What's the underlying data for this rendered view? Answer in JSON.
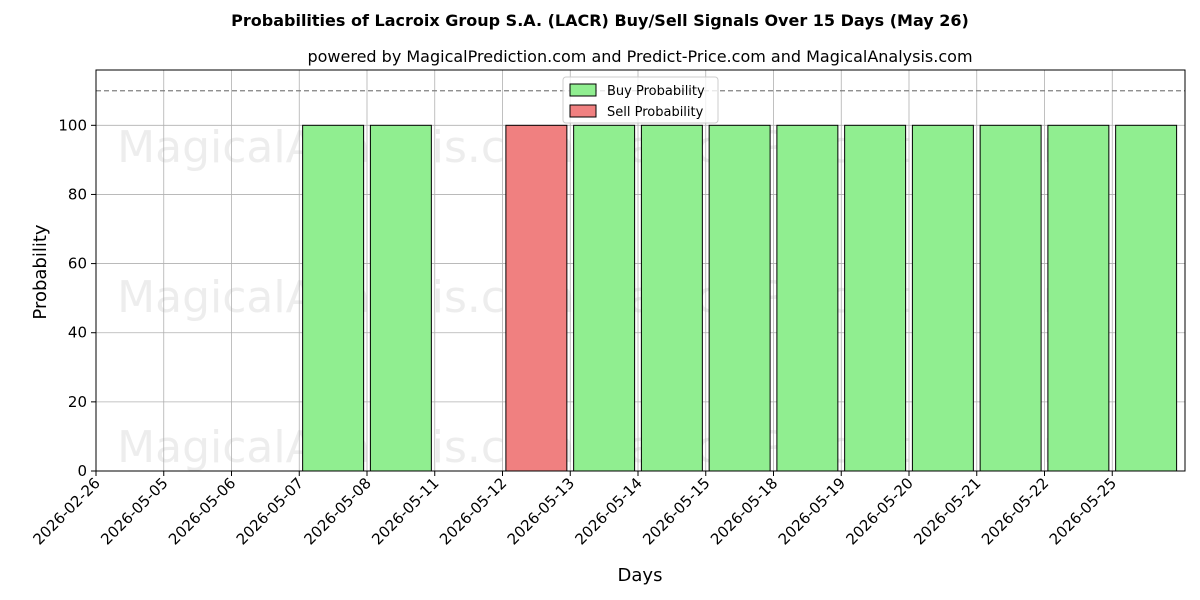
{
  "chart_data": {
    "type": "bar",
    "title": "Probabilities of Lacroix Group S.A. (LACR) Buy/Sell Signals Over 15 Days (May 26)",
    "subtitle": "powered by MagicalPrediction.com and Predict-Price.com and MagicalAnalysis.com",
    "xlabel": "Days",
    "ylabel": "Probability",
    "ylim": [
      0,
      116
    ],
    "yticks": [
      0,
      20,
      40,
      60,
      80,
      100
    ],
    "reference_line": 110,
    "grid": true,
    "legend_placement": "top-center",
    "categories": [
      "2026-02-26",
      "2026-05-05",
      "2026-05-06",
      "2026-05-07",
      "2026-05-08",
      "2026-05-11",
      "2026-05-12",
      "2026-05-13",
      "2026-05-14",
      "2026-05-15",
      "2026-05-18",
      "2026-05-19",
      "2026-05-20",
      "2026-05-21",
      "2026-05-22",
      "2026-05-25"
    ],
    "series": [
      {
        "name": "Buy Probability",
        "color": "#90ee90",
        "values": [
          null,
          null,
          null,
          100,
          100,
          null,
          null,
          100,
          100,
          100,
          100,
          100,
          100,
          100,
          100,
          100
        ]
      },
      {
        "name": "Sell Probability",
        "color": "#f08080",
        "values": [
          null,
          null,
          null,
          null,
          null,
          null,
          100,
          null,
          null,
          null,
          null,
          null,
          null,
          null,
          null,
          null
        ]
      }
    ],
    "watermarks": [
      "MagicalAnalysis.com",
      "MagicalPrediction.com"
    ]
  }
}
